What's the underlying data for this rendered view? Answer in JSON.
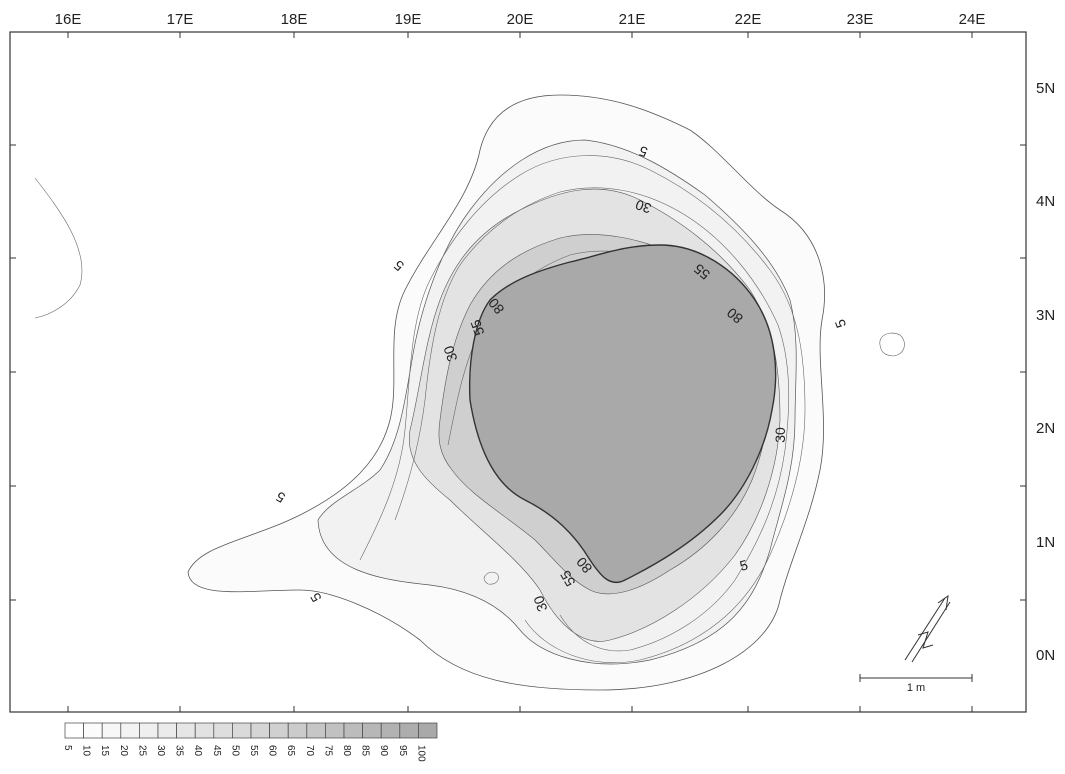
{
  "map": {
    "x_axis_labels": [
      "16E",
      "17E",
      "18E",
      "19E",
      "20E",
      "21E",
      "22E",
      "23E",
      "24E"
    ],
    "y_axis_labels": [
      "5N",
      "4N",
      "3N",
      "2N",
      "1N",
      "0N"
    ],
    "contour_labels": [
      "5",
      "5",
      "5",
      "5",
      "5",
      "5",
      "30",
      "30",
      "30",
      "30",
      "55",
      "55",
      "55",
      "80",
      "80",
      "80"
    ],
    "legend_values": [
      "5",
      "10",
      "15",
      "20",
      "25",
      "30",
      "35",
      "40",
      "45",
      "50",
      "55",
      "60",
      "65",
      "70",
      "75",
      "80",
      "85",
      "90",
      "95",
      "100"
    ],
    "scale_bar_label": "1 m",
    "colors": {
      "background": "#ffffff",
      "core_fill": "#a9a9a9",
      "contour_line": "#444444",
      "frame": "#333333"
    }
  }
}
